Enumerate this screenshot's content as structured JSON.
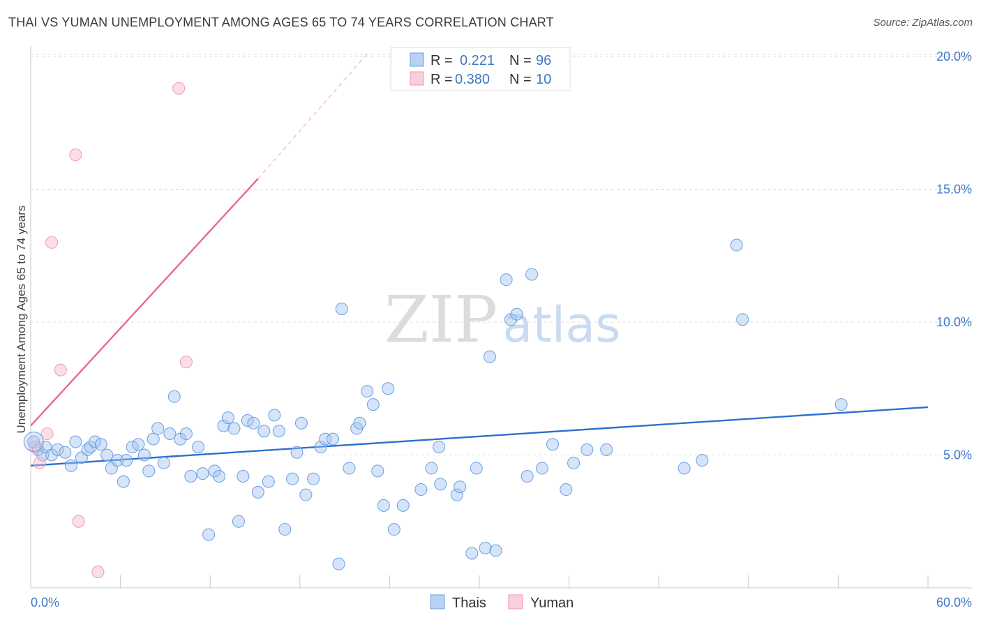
{
  "header": {
    "title": "THAI VS YUMAN UNEMPLOYMENT AMONG AGES 65 TO 74 YEARS CORRELATION CHART",
    "source": "Source: ZipAtlas.com"
  },
  "watermark": {
    "zip": "ZIP",
    "atlas": "atlas"
  },
  "colors": {
    "thais": "#6a9fe0",
    "yuman": "#f09ab3",
    "thais_line": "#2e6fd0",
    "yuman_line": "#e8678f",
    "tick": "#3f78c8"
  },
  "stats_legend": [
    {
      "r_label": "R =",
      "r_value": "0.221",
      "n_label": "N =",
      "n_value": "96"
    },
    {
      "r_label": "R =",
      "r_value": "0.380",
      "n_label": "N =",
      "n_value": "10"
    }
  ],
  "chart_data": {
    "type": "scatter",
    "title": "THAI VS YUMAN UNEMPLOYMENT AMONG AGES 65 TO 74 YEARS CORRELATION CHART",
    "xlabel": "",
    "ylabel": "Unemployment Among Ages 65 to 74 years",
    "xlim": [
      0,
      60
    ],
    "ylim": [
      0,
      20.5
    ],
    "x_tick_labels": {
      "left": "0.0%",
      "right": "60.0%"
    },
    "y_ticks": [
      {
        "value": 5,
        "label": "5.0%"
      },
      {
        "value": 10,
        "label": "10.0%"
      },
      {
        "value": 15,
        "label": "15.0%"
      },
      {
        "value": 20,
        "label": "20.0%"
      }
    ],
    "legend": [
      "Thais",
      "Yuman"
    ],
    "series": [
      {
        "name": "Thais",
        "points": [
          [
            0.2,
            5.5
          ],
          [
            0.5,
            5.2
          ],
          [
            0.8,
            5.0
          ],
          [
            1.0,
            5.3
          ],
          [
            1.4,
            5.0
          ],
          [
            1.8,
            5.2
          ],
          [
            2.3,
            5.1
          ],
          [
            2.7,
            4.6
          ],
          [
            3.0,
            5.5
          ],
          [
            3.4,
            4.9
          ],
          [
            3.8,
            5.2
          ],
          [
            4.0,
            5.3
          ],
          [
            4.3,
            5.5
          ],
          [
            4.7,
            5.4
          ],
          [
            5.1,
            5.0
          ],
          [
            5.4,
            4.5
          ],
          [
            5.8,
            4.8
          ],
          [
            6.2,
            4.0
          ],
          [
            6.4,
            4.8
          ],
          [
            6.8,
            5.3
          ],
          [
            7.2,
            5.4
          ],
          [
            7.6,
            5.0
          ],
          [
            7.9,
            4.4
          ],
          [
            8.2,
            5.6
          ],
          [
            8.5,
            6.0
          ],
          [
            8.9,
            4.7
          ],
          [
            9.3,
            5.8
          ],
          [
            9.6,
            7.2
          ],
          [
            10.0,
            5.6
          ],
          [
            10.4,
            5.8
          ],
          [
            10.7,
            4.2
          ],
          [
            11.2,
            5.3
          ],
          [
            11.5,
            4.3
          ],
          [
            11.9,
            2.0
          ],
          [
            12.3,
            4.4
          ],
          [
            12.6,
            4.2
          ],
          [
            12.9,
            6.1
          ],
          [
            13.2,
            6.4
          ],
          [
            13.6,
            6.0
          ],
          [
            13.9,
            2.5
          ],
          [
            14.2,
            4.2
          ],
          [
            14.5,
            6.3
          ],
          [
            14.9,
            6.2
          ],
          [
            15.2,
            3.6
          ],
          [
            15.6,
            5.9
          ],
          [
            15.9,
            4.0
          ],
          [
            16.3,
            6.5
          ],
          [
            16.6,
            5.9
          ],
          [
            17.0,
            2.2
          ],
          [
            17.5,
            4.1
          ],
          [
            17.8,
            5.1
          ],
          [
            18.1,
            6.2
          ],
          [
            18.4,
            3.5
          ],
          [
            18.9,
            4.1
          ],
          [
            19.4,
            5.3
          ],
          [
            19.7,
            5.6
          ],
          [
            20.2,
            5.6
          ],
          [
            20.6,
            0.9
          ],
          [
            20.8,
            10.5
          ],
          [
            21.3,
            4.5
          ],
          [
            21.8,
            6.0
          ],
          [
            22.0,
            6.2
          ],
          [
            22.5,
            7.4
          ],
          [
            22.9,
            6.9
          ],
          [
            23.2,
            4.4
          ],
          [
            23.6,
            3.1
          ],
          [
            23.9,
            7.5
          ],
          [
            24.3,
            2.2
          ],
          [
            24.9,
            3.1
          ],
          [
            26.1,
            3.7
          ],
          [
            27.3,
            5.3
          ],
          [
            26.8,
            4.5
          ],
          [
            27.4,
            3.9
          ],
          [
            28.5,
            3.5
          ],
          [
            28.7,
            3.8
          ],
          [
            29.5,
            1.3
          ],
          [
            29.8,
            4.5
          ],
          [
            30.4,
            1.5
          ],
          [
            30.7,
            8.7
          ],
          [
            31.1,
            1.4
          ],
          [
            31.8,
            11.6
          ],
          [
            32.1,
            10.1
          ],
          [
            32.5,
            10.3
          ],
          [
            33.2,
            4.2
          ],
          [
            33.5,
            11.8
          ],
          [
            34.2,
            4.5
          ],
          [
            34.9,
            5.4
          ],
          [
            35.8,
            3.7
          ],
          [
            36.3,
            4.7
          ],
          [
            37.2,
            5.2
          ],
          [
            38.5,
            5.2
          ],
          [
            43.7,
            4.5
          ],
          [
            44.9,
            4.8
          ],
          [
            47.2,
            12.9
          ],
          [
            47.6,
            10.1
          ],
          [
            54.2,
            6.9
          ]
        ]
      },
      {
        "name": "Yuman",
        "points": [
          [
            0.3,
            5.3
          ],
          [
            0.6,
            4.7
          ],
          [
            1.1,
            5.8
          ],
          [
            1.4,
            13.0
          ],
          [
            2.0,
            8.2
          ],
          [
            3.0,
            16.3
          ],
          [
            3.2,
            2.5
          ],
          [
            4.5,
            0.6
          ],
          [
            9.9,
            18.8
          ],
          [
            10.4,
            8.5
          ]
        ]
      }
    ],
    "trend_lines": [
      {
        "series": "Thais",
        "x": [
          0,
          60
        ],
        "y": [
          4.6,
          6.8
        ],
        "style": "solid"
      },
      {
        "series": "Yuman",
        "x": [
          0,
          15.2
        ],
        "y": [
          6.1,
          15.4
        ],
        "style": "solid"
      },
      {
        "series": "Yuman",
        "x": [
          15.2,
          22.5
        ],
        "y": [
          15.4,
          20.1
        ],
        "style": "dashed"
      }
    ]
  }
}
